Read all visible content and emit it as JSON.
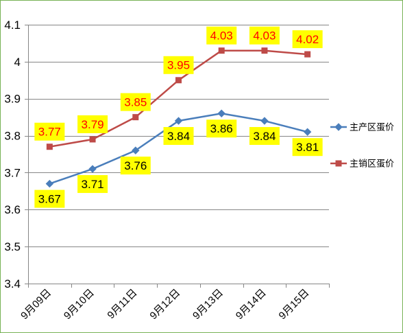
{
  "chart_data": {
    "type": "line",
    "categories": [
      "9月09日",
      "9月10日",
      "9月11日",
      "9月12日",
      "9月13日",
      "9月14日",
      "9月15日"
    ],
    "ylim": [
      3.4,
      4.1
    ],
    "yticks": [
      3.4,
      3.5,
      3.6,
      3.7,
      3.8,
      3.9,
      4,
      4.1
    ],
    "grid": true,
    "legend": "right",
    "series": [
      {
        "name": "主产区蛋价",
        "values": [
          3.67,
          3.71,
          3.76,
          3.84,
          3.86,
          3.84,
          3.81
        ],
        "color": "#4A7EBB",
        "marker": "diamond",
        "data_label_color": "#000000",
        "data_label_position": "below"
      },
      {
        "name": "主销区蛋价",
        "values": [
          3.77,
          3.79,
          3.85,
          3.95,
          4.03,
          4.03,
          4.02
        ],
        "color": "#BE4B48",
        "marker": "square",
        "data_label_color": "#FF0000",
        "data_label_position": "above"
      }
    ],
    "data_label_background": "#FFFF00",
    "gridline_color": "#868686",
    "border_color": "#77B255"
  }
}
